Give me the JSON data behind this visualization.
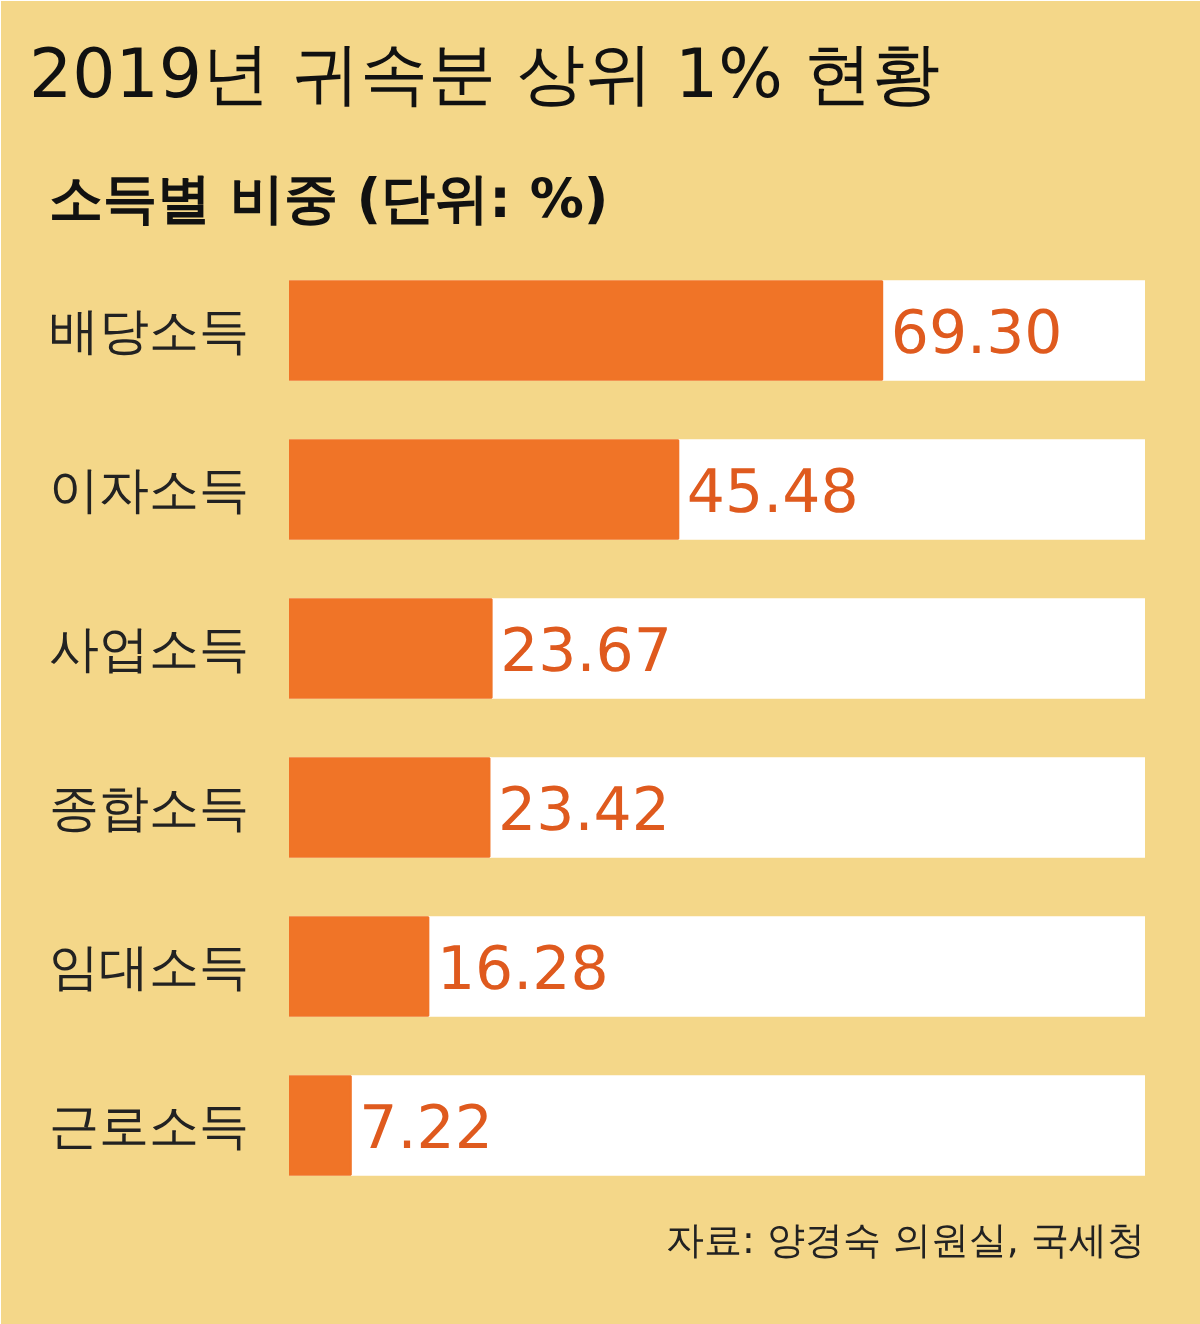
{
  "chart_data": {
    "type": "bar",
    "orientation": "horizontal",
    "title": "2019년 귀속분 상위 1% 현황",
    "subtitle": "소득별 비중 (단위: %)",
    "categories": [
      "배당소득",
      "이자소득",
      "사업소득",
      "종합소득",
      "임대소득",
      "근로소득"
    ],
    "values": [
      69.3,
      45.48,
      23.67,
      23.42,
      16.28,
      7.22
    ],
    "value_labels": [
      "69.30",
      "45.48",
      "23.67",
      "23.42",
      "16.28",
      "7.22"
    ],
    "color": "#f07427",
    "xlim": [
      0,
      100
    ],
    "tick_labels": "y",
    "grid": false,
    "annotations": [
      "자료: 양경숙 의원실, 국세청"
    ]
  }
}
